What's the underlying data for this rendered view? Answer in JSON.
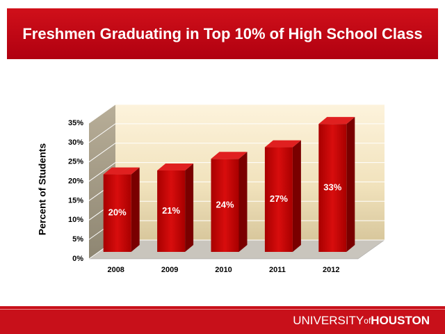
{
  "chart_data": {
    "type": "bar3d",
    "title": "Freshmen Graduating in Top 10% of High School Class",
    "y_label": "Percent of Students",
    "categories": [
      "2008",
      "2009",
      "2010",
      "2011",
      "2012"
    ],
    "values": [
      20,
      21,
      24,
      27,
      33
    ],
    "value_labels": [
      "20%",
      "21%",
      "24%",
      "27%",
      "33%"
    ],
    "color": "#c00000",
    "ylim": [
      0,
      35
    ],
    "yticks": [
      {
        "value": 0,
        "label": "0%"
      },
      {
        "value": 5,
        "label": "5%"
      },
      {
        "value": 10,
        "label": "10%"
      },
      {
        "value": 15,
        "label": "15%"
      },
      {
        "value": 20,
        "label": "20%"
      },
      {
        "value": 25,
        "label": "25%"
      },
      {
        "value": 30,
        "label": "30%"
      },
      {
        "value": 35,
        "label": "35%"
      }
    ],
    "grid": true
  },
  "footer": {
    "university": "UNIVERSITY",
    "of": "of",
    "houston": "HOUSTON"
  }
}
